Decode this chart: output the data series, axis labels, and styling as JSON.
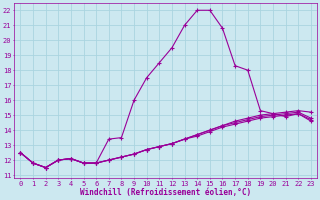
{
  "background_color": "#cce8f0",
  "grid_color": "#aad4e0",
  "line_color": "#990099",
  "line_width": 0.8,
  "marker": "+",
  "marker_size": 3,
  "xlabel": "Windchill (Refroidissement éolien,°C)",
  "xlabel_fontsize": 5.5,
  "tick_fontsize": 5,
  "xlim": [
    -0.5,
    23.5
  ],
  "ylim": [
    10.8,
    22.5
  ],
  "xticks": [
    0,
    1,
    2,
    3,
    4,
    5,
    6,
    7,
    8,
    9,
    10,
    11,
    12,
    13,
    14,
    15,
    16,
    17,
    18,
    19,
    20,
    21,
    22,
    23
  ],
  "yticks": [
    11,
    12,
    13,
    14,
    15,
    16,
    17,
    18,
    19,
    20,
    21,
    22
  ],
  "series": [
    [
      12.5,
      11.8,
      11.5,
      12.0,
      12.1,
      11.8,
      11.8,
      13.4,
      13.5,
      16.0,
      17.5,
      18.5,
      19.5,
      21.0,
      22.0,
      22.0,
      20.8,
      18.3,
      18.0,
      15.3,
      15.1,
      14.9,
      15.1,
      14.7
    ],
    [
      12.5,
      11.8,
      11.5,
      12.0,
      12.1,
      11.8,
      11.8,
      12.0,
      12.2,
      12.4,
      12.7,
      12.9,
      13.1,
      13.4,
      13.7,
      14.0,
      14.3,
      14.6,
      14.8,
      15.0,
      15.1,
      15.2,
      15.3,
      15.2
    ],
    [
      12.5,
      11.8,
      11.5,
      12.0,
      12.1,
      11.8,
      11.8,
      12.0,
      12.2,
      12.4,
      12.7,
      12.9,
      13.1,
      13.4,
      13.7,
      14.0,
      14.3,
      14.5,
      14.7,
      14.9,
      15.0,
      15.1,
      15.2,
      14.8
    ],
    [
      12.5,
      11.8,
      11.5,
      12.0,
      12.1,
      11.8,
      11.8,
      12.0,
      12.2,
      12.4,
      12.7,
      12.9,
      13.1,
      13.4,
      13.6,
      13.9,
      14.2,
      14.4,
      14.6,
      14.8,
      14.9,
      15.0,
      15.1,
      14.6
    ]
  ]
}
